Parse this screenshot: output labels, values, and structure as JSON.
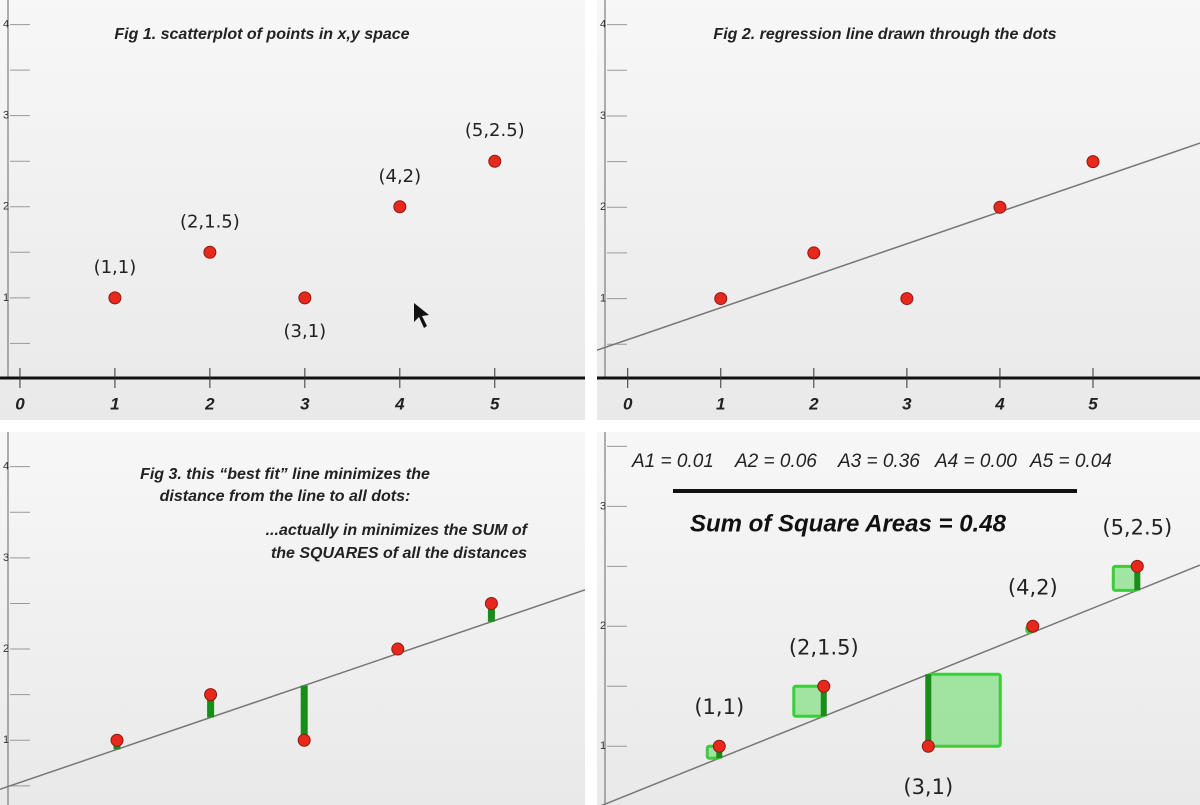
{
  "chart_data": [
    {
      "type": "scatter",
      "title": "Fig 1. scatterplot of points in x,y space",
      "x": [
        1,
        2,
        3,
        4,
        5
      ],
      "y": [
        1,
        1.5,
        1,
        2,
        2.5
      ],
      "point_labels": [
        "(1,1)",
        "(2,1.5)",
        "(3,1)",
        "(4,2)",
        "(5,2.5)"
      ],
      "point_label_positions": [
        "above",
        "above",
        "below",
        "above",
        "above"
      ],
      "xlim": [
        -0.21,
        5.95
      ],
      "xticks": [
        0,
        1,
        2,
        3,
        4,
        5
      ],
      "ylim": [
        0.12,
        4.27
      ],
      "yticks": [
        1,
        2,
        3,
        4
      ],
      "minor_yticks": [
        0.5,
        1.5,
        2.5,
        3.5
      ],
      "color": "#e8281c"
    },
    {
      "type": "scatter",
      "title": "Fig 2. regression line drawn through the dots",
      "x": [
        1,
        2,
        3,
        4,
        5
      ],
      "y": [
        1,
        1.5,
        1,
        2,
        2.5
      ],
      "line": {
        "intercept": 0.55,
        "slope": 0.35
      },
      "xlim": [
        -0.33,
        6.15
      ],
      "xticks": [
        0,
        1,
        2,
        3,
        4,
        5
      ],
      "ylim": [
        0.13,
        4.27
      ],
      "yticks": [
        1,
        2,
        3,
        4
      ],
      "minor_yticks": [
        0.5,
        1.5,
        2.5,
        3.5
      ],
      "color": "#e8281c"
    },
    {
      "type": "scatter",
      "title": [
        "Fig 3. this “best fit” line minimizes the",
        "distance from the line to all dots:"
      ],
      "annotation": [
        "...actually in minimizes the SUM of",
        "the SQUARES of all the distances"
      ],
      "x": [
        1,
        2,
        3,
        4,
        5
      ],
      "y": [
        1,
        1.5,
        1,
        2,
        2.5
      ],
      "line": {
        "intercept": 0.55,
        "slope": 0.35
      },
      "residuals": "bars",
      "xlim": [
        -0.25,
        6.0
      ],
      "ylim": [
        0.29,
        4.38
      ],
      "yticks": [
        1,
        2,
        3,
        4
      ],
      "minor_yticks": [
        0.5,
        1.5,
        2.5,
        3.5
      ],
      "color": "#e8281c",
      "residual_color": "#1a8c1a"
    },
    {
      "type": "scatter",
      "annotation": [
        "A1 = 0.01",
        "A2 = 0.06",
        "A3 = 0.36",
        "A4 = 0.00",
        "A5 = 0.04"
      ],
      "summary": "Sum of Square Areas = 0.48",
      "x": [
        1,
        2,
        3,
        4,
        5
      ],
      "y": [
        1,
        1.5,
        1,
        2,
        2.5
      ],
      "point_labels": [
        "(1,1)",
        "(2,1.5)",
        "(3,1)",
        "(4,2)",
        "(5,2.5)"
      ],
      "point_label_positions": [
        "above",
        "above",
        "below",
        "above",
        "above"
      ],
      "line": {
        "intercept": 0.55,
        "slope": 0.35
      },
      "residuals": "squares",
      "xlim": [
        -0.17,
        5.6
      ],
      "ylim": [
        0.51,
        3.62
      ],
      "yticks": [
        1,
        2,
        3
      ],
      "minor_yticks": [
        1.5,
        2.5,
        3.5
      ],
      "color": "#e8281c",
      "residual_color": "#1a8c1a"
    }
  ]
}
